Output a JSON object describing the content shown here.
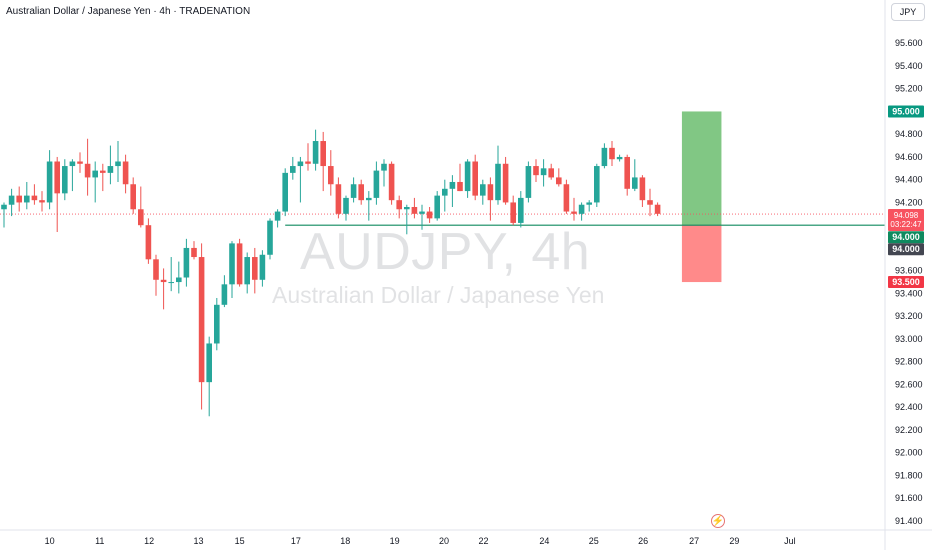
{
  "header": {
    "title": "Australian Dollar / Japanese Yen · 4h · TRADENATION"
  },
  "currency_button": "JPY",
  "watermark": {
    "symbol": "AUDJPY, 4h",
    "name": "Australian Dollar / Japanese Yen"
  },
  "icons": {
    "lightning": "lightning-icon"
  },
  "colors": {
    "up": "#26a69a",
    "down": "#ef5350",
    "profit_zone": "#81c784",
    "loss_zone": "#ff8a8a",
    "support_line": "#0f8a5f",
    "target_tag": "#089981",
    "stop_tag": "#f23645",
    "entry_tag": "#0f8a5f",
    "level_tag": "#434651",
    "last_price_tag": "#f7525f"
  },
  "chart_data": {
    "type": "candlestick",
    "title": "Australian Dollar / Japanese Yen · 4h · TRADENATION",
    "ylim": [
      91.32,
      95.98
    ],
    "y_ticks": [
      95.6,
      95.4,
      95.2,
      94.8,
      94.6,
      94.4,
      94.2,
      93.6,
      93.4,
      93.2,
      93.0,
      92.8,
      92.6,
      92.4,
      92.2,
      92.0,
      91.8,
      91.6,
      91.4
    ],
    "x_ticks": [
      {
        "label": "10",
        "bar": 6.0
      },
      {
        "label": "11",
        "bar": 12.6
      },
      {
        "label": "12",
        "bar": 19.1
      },
      {
        "label": "13",
        "bar": 25.6
      },
      {
        "label": "15",
        "bar": 31.0
      },
      {
        "label": "17",
        "bar": 38.4
      },
      {
        "label": "18",
        "bar": 44.9
      },
      {
        "label": "19",
        "bar": 51.4
      },
      {
        "label": "20",
        "bar": 57.9
      },
      {
        "label": "22",
        "bar": 63.1
      },
      {
        "label": "24",
        "bar": 71.1
      },
      {
        "label": "25",
        "bar": 77.6
      },
      {
        "label": "26",
        "bar": 84.1
      },
      {
        "label": "27",
        "bar": 90.8
      },
      {
        "label": "29",
        "bar": 96.1
      },
      {
        "label": "Jul",
        "bar": 103.4
      }
    ],
    "ohlc": [
      [
        94.14,
        94.2,
        93.98,
        94.18
      ],
      [
        94.18,
        94.32,
        94.08,
        94.26
      ],
      [
        94.26,
        94.34,
        94.12,
        94.2
      ],
      [
        94.2,
        94.38,
        94.14,
        94.26
      ],
      [
        94.26,
        94.36,
        94.18,
        94.22
      ],
      [
        94.22,
        94.3,
        94.12,
        94.2
      ],
      [
        94.2,
        94.66,
        94.14,
        94.56
      ],
      [
        94.56,
        94.6,
        93.94,
        94.28
      ],
      [
        94.28,
        94.58,
        94.22,
        94.52
      ],
      [
        94.52,
        94.58,
        94.3,
        94.56
      ],
      [
        94.56,
        94.64,
        94.46,
        94.54
      ],
      [
        94.54,
        94.76,
        94.26,
        94.42
      ],
      [
        94.42,
        94.56,
        94.2,
        94.48
      ],
      [
        94.48,
        94.54,
        94.3,
        94.46
      ],
      [
        94.46,
        94.7,
        94.36,
        94.52
      ],
      [
        94.52,
        94.74,
        94.38,
        94.56
      ],
      [
        94.56,
        94.62,
        94.28,
        94.36
      ],
      [
        94.36,
        94.42,
        94.1,
        94.14
      ],
      [
        94.14,
        94.34,
        93.98,
        94.0
      ],
      [
        94.0,
        94.06,
        93.66,
        93.7
      ],
      [
        93.7,
        93.74,
        93.38,
        93.52
      ],
      [
        93.52,
        93.62,
        93.26,
        93.5
      ],
      [
        93.5,
        93.72,
        93.42,
        93.5
      ],
      [
        93.5,
        93.68,
        93.4,
        93.54
      ],
      [
        93.54,
        93.88,
        93.46,
        93.8
      ],
      [
        93.8,
        93.86,
        93.7,
        93.72
      ],
      [
        93.72,
        93.84,
        92.38,
        92.62
      ],
      [
        92.62,
        93.02,
        92.32,
        92.96
      ],
      [
        92.96,
        93.36,
        92.9,
        93.3
      ],
      [
        93.3,
        93.56,
        93.28,
        93.48
      ],
      [
        93.48,
        93.86,
        93.36,
        93.84
      ],
      [
        93.84,
        93.88,
        93.46,
        93.48
      ],
      [
        93.48,
        93.76,
        93.4,
        93.72
      ],
      [
        93.72,
        93.8,
        93.4,
        93.52
      ],
      [
        93.52,
        93.78,
        93.46,
        93.74
      ],
      [
        93.74,
        94.06,
        93.7,
        94.04
      ],
      [
        94.04,
        94.14,
        93.98,
        94.12
      ],
      [
        94.12,
        94.5,
        94.08,
        94.46
      ],
      [
        94.46,
        94.6,
        94.4,
        94.52
      ],
      [
        94.52,
        94.6,
        94.2,
        94.56
      ],
      [
        94.56,
        94.72,
        94.48,
        94.54
      ],
      [
        94.54,
        94.84,
        94.48,
        94.74
      ],
      [
        94.74,
        94.82,
        94.3,
        94.52
      ],
      [
        94.52,
        94.66,
        94.26,
        94.36
      ],
      [
        94.36,
        94.42,
        94.06,
        94.1
      ],
      [
        94.1,
        94.26,
        94.04,
        94.24
      ],
      [
        94.24,
        94.42,
        94.2,
        94.36
      ],
      [
        94.36,
        94.4,
        94.18,
        94.22
      ],
      [
        94.22,
        94.3,
        94.04,
        94.24
      ],
      [
        94.24,
        94.56,
        94.18,
        94.48
      ],
      [
        94.48,
        94.58,
        94.34,
        94.54
      ],
      [
        94.54,
        94.56,
        94.18,
        94.22
      ],
      [
        94.22,
        94.26,
        94.06,
        94.14
      ],
      [
        94.14,
        94.18,
        93.92,
        94.16
      ],
      [
        94.16,
        94.24,
        94.06,
        94.1
      ],
      [
        94.1,
        94.18,
        93.96,
        94.12
      ],
      [
        94.12,
        94.16,
        94.02,
        94.06
      ],
      [
        94.06,
        94.3,
        94.04,
        94.26
      ],
      [
        94.26,
        94.4,
        94.12,
        94.32
      ],
      [
        94.32,
        94.44,
        94.16,
        94.38
      ],
      [
        94.38,
        94.54,
        94.3,
        94.3
      ],
      [
        94.3,
        94.58,
        94.24,
        94.56
      ],
      [
        94.56,
        94.62,
        94.22,
        94.26
      ],
      [
        94.26,
        94.4,
        94.18,
        94.36
      ],
      [
        94.36,
        94.42,
        94.04,
        94.22
      ],
      [
        94.22,
        94.7,
        94.18,
        94.54
      ],
      [
        94.54,
        94.6,
        94.18,
        94.2
      ],
      [
        94.2,
        94.26,
        94.0,
        94.02
      ],
      [
        94.02,
        94.3,
        93.98,
        94.24
      ],
      [
        94.24,
        94.56,
        94.2,
        94.52
      ],
      [
        94.52,
        94.58,
        94.38,
        94.44
      ],
      [
        94.44,
        94.58,
        94.34,
        94.5
      ],
      [
        94.5,
        94.54,
        94.4,
        94.42
      ],
      [
        94.42,
        94.5,
        94.34,
        94.36
      ],
      [
        94.36,
        94.4,
        94.1,
        94.12
      ],
      [
        94.12,
        94.24,
        94.04,
        94.1
      ],
      [
        94.1,
        94.2,
        94.04,
        94.18
      ],
      [
        94.18,
        94.22,
        94.12,
        94.2
      ],
      [
        94.2,
        94.54,
        94.16,
        94.52
      ],
      [
        94.52,
        94.72,
        94.5,
        94.68
      ],
      [
        94.68,
        94.74,
        94.52,
        94.58
      ],
      [
        94.58,
        94.62,
        94.56,
        94.6
      ],
      [
        94.6,
        94.62,
        94.26,
        94.32
      ],
      [
        94.32,
        94.58,
        94.3,
        94.42
      ],
      [
        94.42,
        94.44,
        94.16,
        94.22
      ],
      [
        94.22,
        94.32,
        94.08,
        94.18
      ],
      [
        94.18,
        94.2,
        94.08,
        94.1
      ]
    ],
    "position": {
      "target": 95.0,
      "entry": 94.0,
      "stop": 93.5,
      "bar_start": 89.2,
      "bar_end": 94.4
    },
    "support_line": {
      "price": 94.0,
      "from_bar": 37.0
    },
    "last_price": {
      "price": 94.098,
      "countdown": "03:22:47"
    },
    "price_tags": {
      "target": "95.000",
      "last": "94.098",
      "entry": "94.000",
      "level": "94.000",
      "stop": "93.500"
    }
  }
}
